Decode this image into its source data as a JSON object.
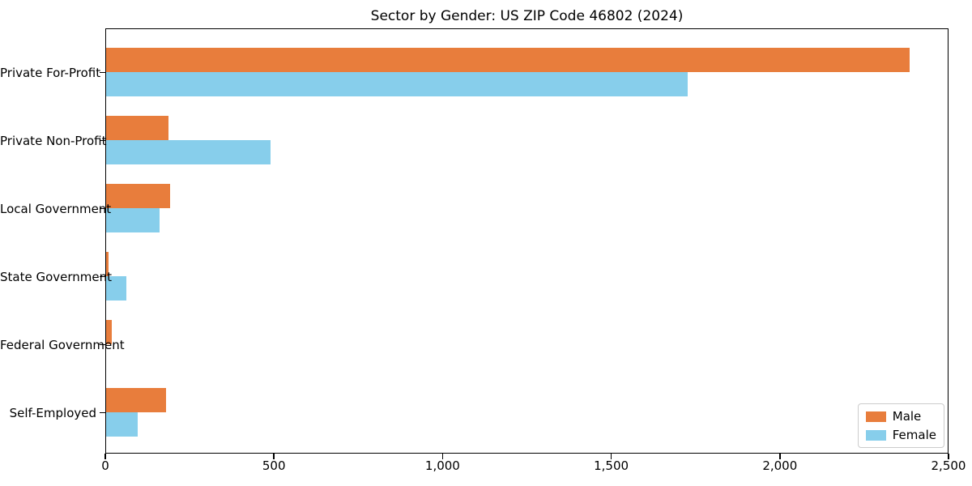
{
  "chart_data": {
    "type": "bar",
    "orientation": "horizontal",
    "title": "Sector by Gender: US ZIP Code 46802 (2024)",
    "categories": [
      "Private For-Profit",
      "Private Non-Profit",
      "Local Government",
      "State Government",
      "Federal Government",
      "Self-Employed"
    ],
    "series": [
      {
        "name": "Male",
        "color": "#e87d3c",
        "values": [
          2390,
          185,
          190,
          8,
          18,
          178
        ]
      },
      {
        "name": "Female",
        "color": "#87ceeb",
        "values": [
          1730,
          490,
          160,
          60,
          0,
          94
        ]
      }
    ],
    "xlim": [
      0,
      2500
    ],
    "xticks": [
      0,
      500,
      1000,
      1500,
      2000,
      2500
    ],
    "xticklabels": [
      "0",
      "500",
      "1,000",
      "1,500",
      "2,000",
      "2,500"
    ],
    "xlabel": "",
    "ylabel": "",
    "grid": false,
    "legend_position": "lower right"
  },
  "colors": {
    "background": "#ffffff",
    "spine": "#000000",
    "legend_border": "#cccccc"
  }
}
